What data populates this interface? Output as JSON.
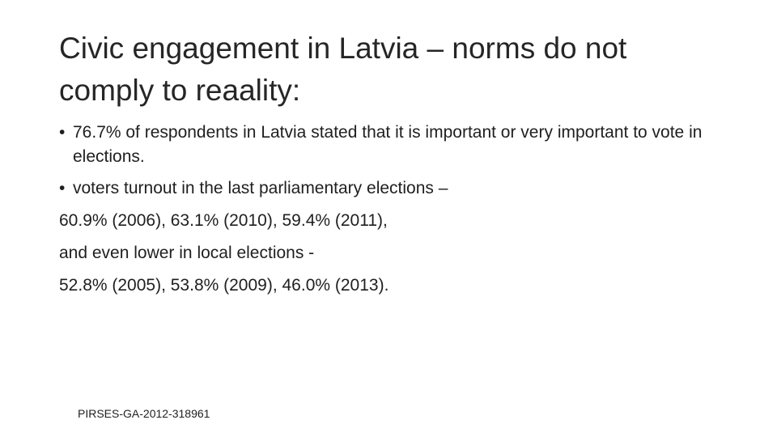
{
  "slide": {
    "title": "Civic engagement in Latvia – norms do not comply to reaality:",
    "bullets": [
      "76.7% of respondents in Latvia stated that it is important or very important to vote in elections.",
      "voters turnout in the last parliamentary elections –"
    ],
    "bullet_glyph": "•",
    "lines": [
      "60.9% (2006), 63.1% (2010), 59.4% (2011),",
      "and even lower in local elections  -",
      "52.8% (2005), 53.8% (2009), 46.0% (2013)."
    ],
    "footer": "PIRSES-GA-2012-318961"
  }
}
